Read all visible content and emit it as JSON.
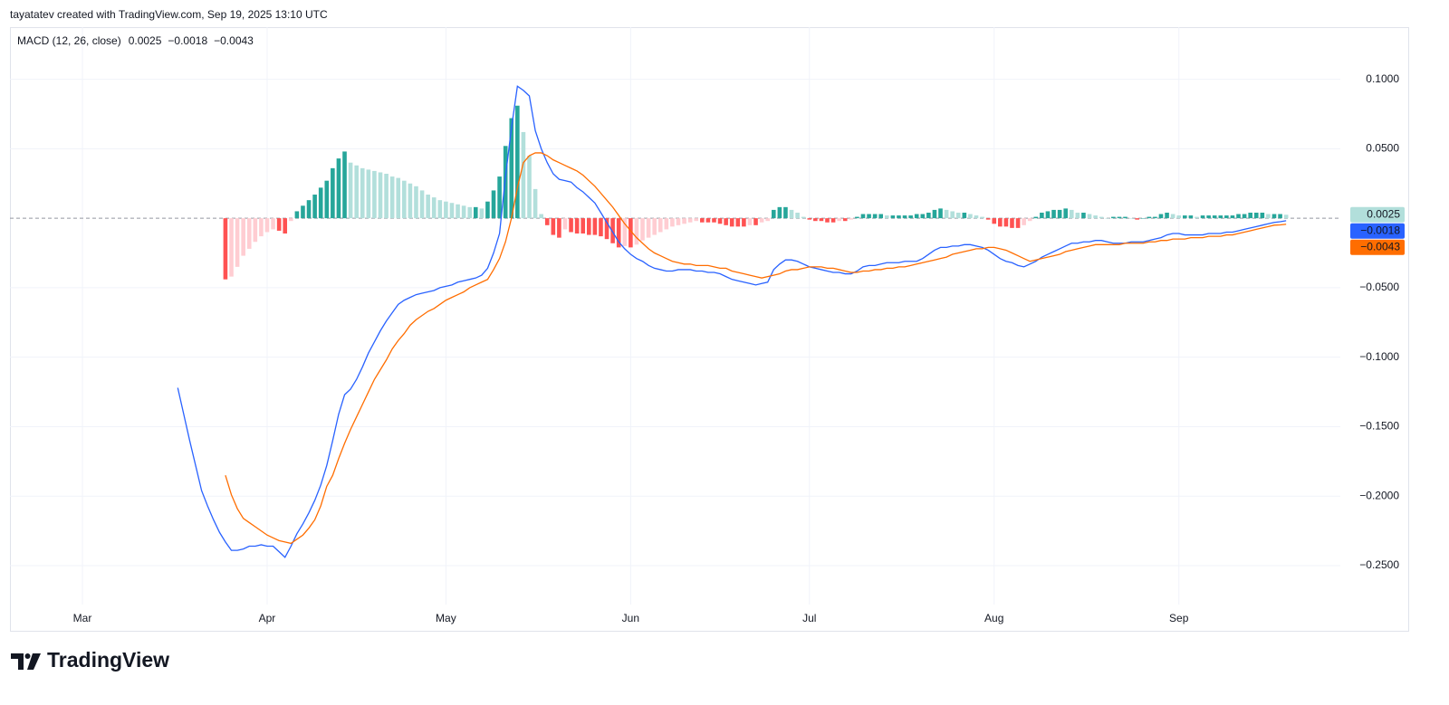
{
  "header": "tayatatev created with TradingView.com, Sep 19, 2025 13:10 UTC",
  "footer": {
    "brand": "TradingView"
  },
  "chart_data": {
    "type": "macd",
    "title": "MACD (12, 26, close)",
    "categories": [
      "Mar",
      null,
      null,
      null,
      null,
      null,
      null,
      null,
      null,
      null,
      null,
      null,
      null,
      null,
      null,
      null,
      null,
      null,
      null,
      null,
      null,
      null,
      null,
      null,
      null,
      null,
      null,
      null,
      null,
      null,
      null,
      "Apr",
      null,
      null,
      null,
      null,
      null,
      null,
      null,
      null,
      null,
      null,
      null,
      null,
      null,
      null,
      null,
      null,
      null,
      null,
      null,
      null,
      null,
      null,
      null,
      null,
      null,
      null,
      null,
      null,
      null,
      "May",
      null,
      null,
      null,
      null,
      null,
      null,
      null,
      null,
      null,
      null,
      null,
      null,
      null,
      null,
      null,
      null,
      null,
      null,
      null,
      null,
      null,
      null,
      null,
      null,
      null,
      null,
      null,
      null,
      null,
      null,
      "Jun",
      null,
      null,
      null,
      null,
      null,
      null,
      null,
      null,
      null,
      null,
      null,
      null,
      null,
      null,
      null,
      null,
      null,
      null,
      null,
      null,
      null,
      null,
      null,
      null,
      null,
      null,
      null,
      null,
      null,
      "Jul",
      null,
      null,
      null,
      null,
      null,
      null,
      null,
      null,
      null,
      null,
      null,
      null,
      null,
      null,
      null,
      null,
      null,
      null,
      null,
      null,
      null,
      null,
      null,
      null,
      null,
      null,
      null,
      null,
      null,
      null,
      "Aug",
      null,
      null,
      null,
      null,
      null,
      null,
      null,
      null,
      null,
      null,
      null,
      null,
      null,
      null,
      null,
      null,
      null,
      null,
      null,
      null,
      null,
      null,
      null,
      null,
      null,
      null,
      null,
      null,
      null,
      null,
      "Sep",
      null,
      null,
      null,
      null,
      null,
      null,
      null,
      null,
      null,
      null,
      null,
      null,
      null,
      null,
      null,
      null,
      null,
      null
    ],
    "series": [
      {
        "kind": "histogram",
        "last_label": "0.0025",
        "colors": {
          "grow_above": "#26a69a",
          "fall_above": "#b2dfdb",
          "grow_below": "#ffcdd2",
          "fall_below": "#ff5252"
        },
        "values": [
          null,
          null,
          null,
          null,
          null,
          null,
          null,
          null,
          null,
          null,
          null,
          null,
          null,
          null,
          null,
          null,
          null,
          null,
          null,
          null,
          null,
          null,
          null,
          null,
          -0.044,
          -0.042,
          -0.035,
          -0.027,
          -0.022,
          -0.017,
          -0.013,
          -0.01,
          -0.008,
          -0.009,
          -0.011,
          -0.002,
          0.005,
          0.009,
          0.013,
          0.017,
          0.022,
          0.027,
          0.036,
          0.043,
          0.048,
          0.04,
          0.038,
          0.036,
          0.035,
          0.034,
          0.033,
          0.032,
          0.03,
          0.029,
          0.027,
          0.025,
          0.023,
          0.02,
          0.017,
          0.015,
          0.013,
          0.012,
          0.011,
          0.01,
          0.009,
          0.008,
          0.008,
          0.007,
          0.012,
          0.02,
          0.03,
          0.052,
          0.072,
          0.081,
          0.062,
          0.045,
          0.021,
          0.003,
          -0.005,
          -0.012,
          -0.014,
          -0.008,
          -0.01,
          -0.011,
          -0.011,
          -0.012,
          -0.012,
          -0.013,
          -0.015,
          -0.018,
          -0.021,
          -0.02,
          -0.021,
          -0.019,
          -0.016,
          -0.014,
          -0.012,
          -0.01,
          -0.008,
          -0.006,
          -0.005,
          -0.004,
          -0.003,
          -0.002,
          -0.003,
          -0.003,
          -0.003,
          -0.004,
          -0.005,
          -0.006,
          -0.006,
          -0.006,
          -0.005,
          -0.005,
          -0.003,
          -0.002,
          0.006,
          0.008,
          0.008,
          0.006,
          0.004,
          0.001,
          -0.001,
          -0.002,
          -0.002,
          -0.003,
          -0.003,
          -0.002,
          -0.002,
          -0.001,
          0.001,
          0.003,
          0.003,
          0.003,
          0.003,
          0.002,
          0.002,
          0.002,
          0.002,
          0.002,
          0.003,
          0.003,
          0.004,
          0.006,
          0.007,
          0.006,
          0.005,
          0.004,
          0.004,
          0.003,
          0.002,
          0.001,
          -0.001,
          -0.004,
          -0.006,
          -0.006,
          -0.007,
          -0.007,
          -0.005,
          -0.002,
          0.001,
          0.004,
          0.005,
          0.006,
          0.006,
          0.007,
          0.006,
          0.004,
          0.004,
          0.003,
          0.002,
          0.001,
          0,
          0.001,
          0.001,
          0.001,
          0,
          -0.001,
          0,
          0.001,
          0.001,
          0.003,
          0.004,
          0.003,
          0.002,
          0.002,
          0.002,
          0.001,
          0.002,
          0.002,
          0.002,
          0.002,
          0.002,
          0.002,
          0.003,
          0.003,
          0.004,
          0.004,
          0.004,
          0.003,
          0.003,
          0.003,
          0.0025
        ]
      },
      {
        "kind": "line",
        "color": "#2962ff",
        "last_label": "−0.0018",
        "values": [
          null,
          null,
          null,
          null,
          null,
          null,
          null,
          null,
          null,
          null,
          null,
          null,
          null,
          null,
          null,
          null,
          -0.122,
          -0.141,
          -0.16,
          -0.178,
          -0.196,
          -0.207,
          -0.217,
          -0.226,
          -0.233,
          -0.239,
          -0.239,
          -0.238,
          -0.236,
          -0.236,
          -0.235,
          -0.236,
          -0.236,
          -0.24,
          -0.244,
          -0.236,
          -0.227,
          -0.22,
          -0.212,
          -0.203,
          -0.192,
          -0.178,
          -0.16,
          -0.141,
          -0.127,
          -0.123,
          -0.116,
          -0.107,
          -0.097,
          -0.089,
          -0.081,
          -0.074,
          -0.068,
          -0.062,
          -0.059,
          -0.057,
          -0.055,
          -0.054,
          -0.053,
          -0.052,
          -0.05,
          -0.049,
          -0.048,
          -0.046,
          -0.045,
          -0.044,
          -0.043,
          -0.041,
          -0.036,
          -0.025,
          -0.011,
          0.03,
          0.065,
          0.095,
          0.092,
          0.088,
          0.063,
          0.05,
          0.04,
          0.032,
          0.028,
          0.027,
          0.026,
          0.022,
          0.019,
          0.015,
          0.011,
          0.004,
          -0.003,
          -0.01,
          -0.017,
          -0.022,
          -0.026,
          -0.029,
          -0.031,
          -0.034,
          -0.036,
          -0.037,
          -0.038,
          -0.038,
          -0.037,
          -0.037,
          -0.037,
          -0.038,
          -0.038,
          -0.039,
          -0.039,
          -0.04,
          -0.042,
          -0.044,
          -0.045,
          -0.046,
          -0.047,
          -0.048,
          -0.047,
          -0.046,
          -0.037,
          -0.033,
          -0.03,
          -0.03,
          -0.031,
          -0.033,
          -0.035,
          -0.036,
          -0.037,
          -0.038,
          -0.039,
          -0.039,
          -0.04,
          -0.04,
          -0.038,
          -0.035,
          -0.034,
          -0.034,
          -0.033,
          -0.032,
          -0.032,
          -0.032,
          -0.031,
          -0.031,
          -0.031,
          -0.029,
          -0.026,
          -0.023,
          -0.021,
          -0.021,
          -0.02,
          -0.02,
          -0.019,
          -0.019,
          -0.02,
          -0.021,
          -0.023,
          -0.026,
          -0.029,
          -0.031,
          -0.032,
          -0.034,
          -0.035,
          -0.033,
          -0.031,
          -0.028,
          -0.026,
          -0.024,
          -0.022,
          -0.02,
          -0.018,
          -0.018,
          -0.017,
          -0.017,
          -0.016,
          -0.016,
          -0.017,
          -0.018,
          -0.018,
          -0.018,
          -0.017,
          -0.017,
          -0.017,
          -0.016,
          -0.015,
          -0.014,
          -0.012,
          -0.011,
          -0.011,
          -0.012,
          -0.012,
          -0.012,
          -0.012,
          -0.011,
          -0.011,
          -0.011,
          -0.01,
          -0.01,
          -0.009,
          -0.008,
          -0.007,
          -0.006,
          -0.005,
          -0.004,
          -0.003,
          -0.0025,
          -0.0018
        ]
      },
      {
        "kind": "line",
        "color": "#ff6d00",
        "last_label": "−0.0043",
        "values": [
          null,
          null,
          null,
          null,
          null,
          null,
          null,
          null,
          null,
          null,
          null,
          null,
          null,
          null,
          null,
          null,
          null,
          null,
          null,
          null,
          null,
          null,
          null,
          null,
          -0.185,
          -0.199,
          -0.209,
          -0.216,
          -0.219,
          -0.222,
          -0.225,
          -0.228,
          -0.23,
          -0.232,
          -0.233,
          -0.234,
          -0.231,
          -0.228,
          -0.223,
          -0.217,
          -0.207,
          -0.193,
          -0.185,
          -0.173,
          -0.162,
          -0.152,
          -0.143,
          -0.134,
          -0.125,
          -0.116,
          -0.109,
          -0.102,
          -0.094,
          -0.088,
          -0.083,
          -0.077,
          -0.073,
          -0.07,
          -0.067,
          -0.065,
          -0.062,
          -0.059,
          -0.057,
          -0.055,
          -0.053,
          -0.05,
          -0.048,
          -0.046,
          -0.044,
          -0.037,
          -0.029,
          -0.017,
          0,
          0.022,
          0.04,
          0.045,
          0.047,
          0.047,
          0.045,
          0.042,
          0.04,
          0.038,
          0.036,
          0.034,
          0.031,
          0.027,
          0.023,
          0.018,
          0.013,
          0.008,
          0.002,
          -0.004,
          -0.009,
          -0.014,
          -0.018,
          -0.022,
          -0.025,
          -0.027,
          -0.029,
          -0.031,
          -0.032,
          -0.033,
          -0.033,
          -0.034,
          -0.034,
          -0.034,
          -0.035,
          -0.036,
          -0.036,
          -0.038,
          -0.039,
          -0.04,
          -0.041,
          -0.042,
          -0.043,
          -0.042,
          -0.041,
          -0.04,
          -0.038,
          -0.037,
          -0.037,
          -0.036,
          -0.035,
          -0.035,
          -0.035,
          -0.036,
          -0.036,
          -0.037,
          -0.038,
          -0.039,
          -0.039,
          -0.038,
          -0.038,
          -0.037,
          -0.037,
          -0.036,
          -0.036,
          -0.035,
          -0.035,
          -0.034,
          -0.033,
          -0.032,
          -0.031,
          -0.03,
          -0.029,
          -0.028,
          -0.026,
          -0.025,
          -0.024,
          -0.023,
          -0.022,
          -0.022,
          -0.021,
          -0.021,
          -0.022,
          -0.023,
          -0.025,
          -0.027,
          -0.029,
          -0.031,
          -0.03,
          -0.029,
          -0.028,
          -0.027,
          -0.026,
          -0.024,
          -0.023,
          -0.022,
          -0.021,
          -0.02,
          -0.019,
          -0.019,
          -0.019,
          -0.019,
          -0.019,
          -0.018,
          -0.018,
          -0.018,
          -0.018,
          -0.017,
          -0.017,
          -0.016,
          -0.016,
          -0.015,
          -0.015,
          -0.015,
          -0.014,
          -0.014,
          -0.014,
          -0.013,
          -0.013,
          -0.013,
          -0.012,
          -0.012,
          -0.011,
          -0.01,
          -0.009,
          -0.008,
          -0.007,
          -0.006,
          -0.005,
          -0.0048,
          -0.0043
        ]
      }
    ],
    "ylim": [
      -0.278,
      0.1375
    ],
    "yticks": [
      {
        "value": 0.1,
        "label": "0.1000"
      },
      {
        "value": 0.05,
        "label": "0.0500"
      },
      {
        "value": -0.05,
        "label": "−0.0500"
      },
      {
        "value": -0.1,
        "label": "−0.1000"
      },
      {
        "value": -0.15,
        "label": "−0.1500"
      },
      {
        "value": -0.2,
        "label": "−0.2000"
      },
      {
        "value": -0.25,
        "label": "−0.2500"
      }
    ],
    "grid": true,
    "zero_line": true
  }
}
